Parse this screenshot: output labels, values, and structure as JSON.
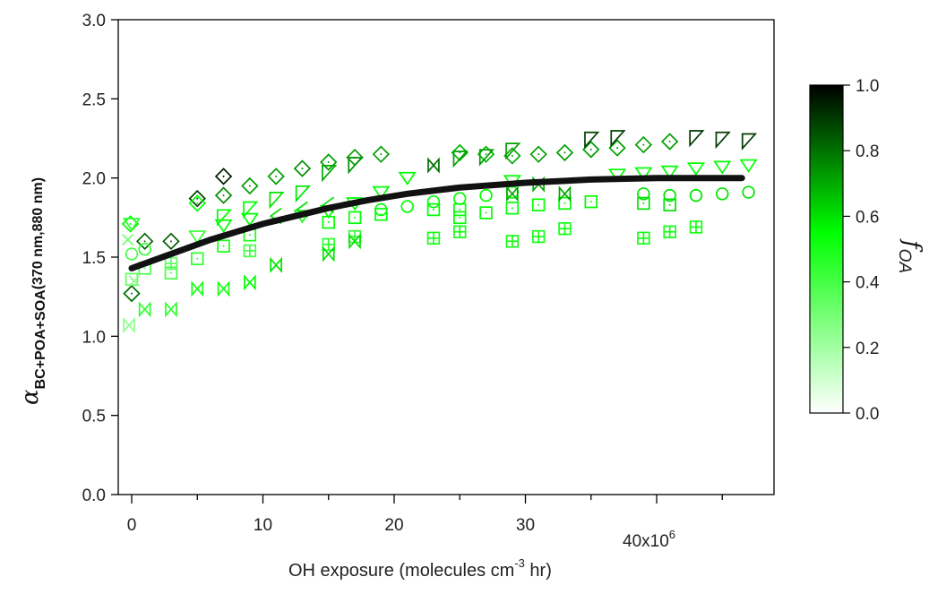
{
  "chart_data": {
    "type": "scatter",
    "title": "",
    "xlabel": {
      "main": "OH exposure (molecules cm",
      "sup": "-3",
      "tail": " hr)"
    },
    "ylabel": {
      "symbol": "α",
      "sub": "BC+POA+SOA",
      "sub2": "(370 nm,880 nm)"
    },
    "x_multiplier_label": {
      "base": "40x10",
      "exp": "6"
    },
    "xlim": [
      -1,
      48
    ],
    "ylim": [
      0,
      3
    ],
    "x_ticks": [
      0,
      10,
      20,
      30,
      40
    ],
    "x_tick_labels": [
      "0",
      "10",
      "20",
      "30",
      ""
    ],
    "y_ticks": [
      0,
      0.5,
      1,
      1.5,
      2,
      2.5,
      3
    ],
    "y_tick_labels": [
      "0.0",
      "0.5",
      "1.0",
      "1.5",
      "2.0",
      "2.5",
      "3.0"
    ],
    "grid": false,
    "colorbar": {
      "label": "f",
      "label_sub": "OA",
      "min": 0,
      "max": 1,
      "ticks": [
        "0.0",
        "0.2",
        "0.4",
        "0.6",
        "0.8",
        "1.0"
      ],
      "color_low": "#ffffff",
      "color_mid": "#00ff00",
      "color_high": "#000000"
    },
    "fit_line": {
      "color": "#111111",
      "x": [
        0,
        2,
        4,
        6,
        8,
        10,
        12,
        15,
        18,
        21,
        25,
        30,
        35,
        40,
        46.5
      ],
      "y": [
        1.43,
        1.49,
        1.55,
        1.61,
        1.66,
        1.71,
        1.75,
        1.81,
        1.86,
        1.9,
        1.94,
        1.97,
        1.99,
        2.0,
        2.0
      ]
    },
    "series": [
      {
        "marker": "diamond-dot",
        "points": [
          [
            -0.1,
            1.71,
            0.55
          ],
          [
            0,
            1.27,
            0.8
          ],
          [
            1,
            1.6,
            0.82
          ],
          [
            3,
            1.6,
            0.84
          ],
          [
            5,
            1.87,
            0.88
          ],
          [
            7,
            2.01,
            0.95
          ],
          [
            7,
            1.89,
            0.75
          ],
          [
            9,
            1.95,
            0.72
          ],
          [
            11,
            2.01,
            0.72
          ],
          [
            13,
            2.06,
            0.75
          ],
          [
            15,
            2.1,
            0.72
          ],
          [
            17,
            2.13,
            0.72
          ],
          [
            19,
            2.15,
            0.72
          ],
          [
            25,
            2.16,
            0.68
          ],
          [
            27,
            2.15,
            0.68
          ],
          [
            29,
            2.14,
            0.7
          ],
          [
            31,
            2.15,
            0.72
          ],
          [
            33,
            2.16,
            0.72
          ],
          [
            35,
            2.18,
            0.72
          ],
          [
            37,
            2.19,
            0.72
          ],
          [
            39,
            2.21,
            0.72
          ],
          [
            41,
            2.23,
            0.72
          ],
          [
            5,
            1.84,
            0.55
          ]
        ]
      },
      {
        "marker": "tri-down",
        "points": [
          [
            0,
            1.71,
            0.45
          ],
          [
            5,
            1.63,
            0.45
          ],
          [
            7,
            1.7,
            0.55
          ],
          [
            9,
            1.74,
            0.55
          ],
          [
            13,
            1.76,
            0.5
          ],
          [
            15,
            1.79,
            0.55
          ],
          [
            17,
            1.84,
            0.55
          ],
          [
            19,
            1.91,
            0.55
          ],
          [
            21,
            2.0,
            0.55
          ],
          [
            29,
            1.98,
            0.55
          ],
          [
            37,
            2.02,
            0.55
          ],
          [
            39,
            2.03,
            0.55
          ],
          [
            41,
            2.04,
            0.55
          ],
          [
            43,
            2.06,
            0.55
          ],
          [
            45,
            2.07,
            0.55
          ],
          [
            47,
            2.08,
            0.55
          ]
        ]
      },
      {
        "marker": "flag",
        "points": [
          [
            7,
            1.75,
            0.55
          ],
          [
            9,
            1.8,
            0.55
          ],
          [
            11,
            1.86,
            0.6
          ],
          [
            13,
            1.9,
            0.6
          ],
          [
            15,
            2.03,
            0.7
          ],
          [
            17,
            2.08,
            0.75
          ],
          [
            25,
            2.12,
            0.72
          ],
          [
            27,
            2.13,
            0.72
          ],
          [
            29,
            2.17,
            0.72
          ],
          [
            35,
            2.24,
            0.88
          ],
          [
            37,
            2.25,
            0.88
          ],
          [
            43,
            2.25,
            0.9
          ],
          [
            45,
            2.24,
            0.9
          ],
          [
            47,
            2.23,
            0.9
          ]
        ]
      },
      {
        "marker": "lt",
        "points": [
          [
            11,
            1.76,
            0.6
          ],
          [
            13,
            1.8,
            0.6
          ],
          [
            15,
            1.83,
            0.6
          ]
        ]
      },
      {
        "marker": "circle",
        "points": [
          [
            0,
            1.52,
            0.4
          ],
          [
            1,
            1.55,
            0.45
          ],
          [
            19,
            1.8,
            0.55
          ],
          [
            21,
            1.82,
            0.55
          ],
          [
            23,
            1.85,
            0.55
          ],
          [
            25,
            1.87,
            0.55
          ],
          [
            27,
            1.89,
            0.55
          ],
          [
            29,
            1.91,
            0.55
          ],
          [
            39,
            1.9,
            0.6
          ],
          [
            41,
            1.89,
            0.6
          ],
          [
            43,
            1.89,
            0.6
          ],
          [
            45,
            1.9,
            0.6
          ],
          [
            47,
            1.91,
            0.6
          ]
        ]
      },
      {
        "marker": "square-dot",
        "points": [
          [
            0,
            1.36,
            0.35
          ],
          [
            1,
            1.43,
            0.4
          ],
          [
            3,
            1.4,
            0.4
          ],
          [
            5,
            1.49,
            0.45
          ],
          [
            7,
            1.57,
            0.5
          ],
          [
            9,
            1.64,
            0.5
          ],
          [
            15,
            1.72,
            0.55
          ],
          [
            17,
            1.75,
            0.55
          ],
          [
            19,
            1.77,
            0.55
          ],
          [
            23,
            1.8,
            0.55
          ],
          [
            25,
            1.8,
            0.55
          ],
          [
            27,
            1.78,
            0.55
          ],
          [
            29,
            1.81,
            0.55
          ],
          [
            31,
            1.83,
            0.55
          ],
          [
            33,
            1.84,
            0.55
          ],
          [
            35,
            1.85,
            0.55
          ],
          [
            39,
            1.84,
            0.6
          ],
          [
            41,
            1.83,
            0.6
          ],
          [
            25,
            1.75,
            0.55
          ]
        ]
      },
      {
        "marker": "square-plus",
        "points": [
          [
            3,
            1.46,
            0.35
          ],
          [
            9,
            1.54,
            0.4
          ],
          [
            15,
            1.58,
            0.45
          ],
          [
            17,
            1.63,
            0.45
          ],
          [
            23,
            1.62,
            0.5
          ],
          [
            25,
            1.66,
            0.5
          ],
          [
            29,
            1.6,
            0.5
          ],
          [
            31,
            1.63,
            0.5
          ],
          [
            33,
            1.68,
            0.5
          ],
          [
            39,
            1.62,
            0.5
          ],
          [
            41,
            1.66,
            0.5
          ],
          [
            43,
            1.69,
            0.5
          ]
        ]
      },
      {
        "marker": "bowtie",
        "points": [
          [
            1,
            1.17,
            0.45
          ],
          [
            3,
            1.17,
            0.45
          ],
          [
            5,
            1.3,
            0.5
          ],
          [
            7,
            1.3,
            0.5
          ],
          [
            9,
            1.34,
            0.55
          ],
          [
            11,
            1.45,
            0.6
          ],
          [
            15,
            1.52,
            0.6
          ],
          [
            17,
            1.6,
            0.6
          ],
          [
            23,
            2.08,
            0.8
          ],
          [
            29,
            1.9,
            0.7
          ],
          [
            31,
            1.96,
            0.7
          ],
          [
            33,
            1.9,
            0.7
          ],
          [
            -0.2,
            1.07,
            0.25
          ]
        ]
      },
      {
        "marker": "cross",
        "points": [
          [
            -0.3,
            1.61,
            0.3
          ],
          [
            0.2,
            1.35,
            0.25
          ]
        ]
      }
    ]
  }
}
